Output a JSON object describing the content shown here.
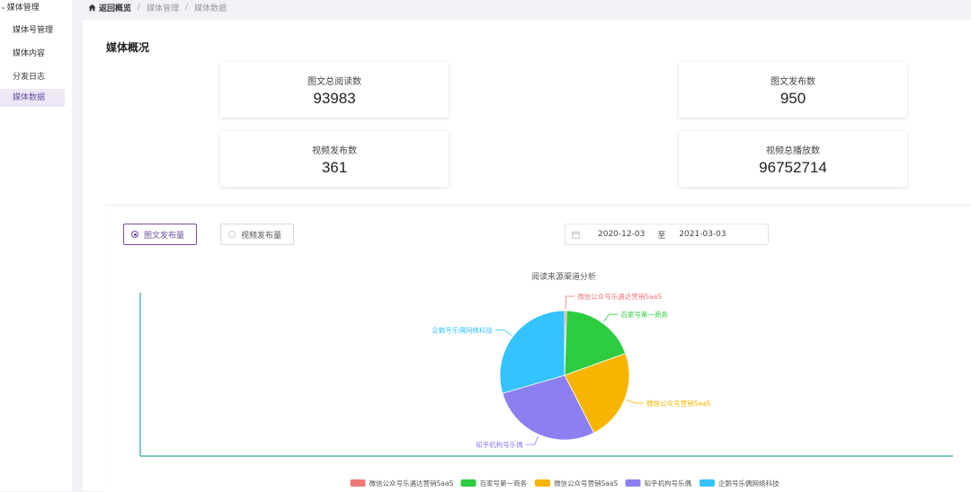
{
  "sidebar": {
    "group_label": "媒体管理",
    "items": [
      {
        "label": "媒体号管理"
      },
      {
        "label": "媒体内容"
      },
      {
        "label": "分发日志"
      },
      {
        "label": "媒体数据"
      }
    ]
  },
  "breadcrumb": {
    "back_label": "返回概览",
    "items": [
      "媒体管理",
      "媒体数据"
    ]
  },
  "overview": {
    "title": "媒体概况",
    "stats": [
      {
        "label": "图文总阅读数",
        "value": "93983"
      },
      {
        "label": "图文发布数",
        "value": "950"
      },
      {
        "label": "视频发布数",
        "value": "361"
      },
      {
        "label": "视频总播放数",
        "value": "96752714"
      }
    ]
  },
  "filters": {
    "radio_options": [
      "图文发布量",
      "视频发布量"
    ],
    "selected_index": 0,
    "date_start": "2020-12-03",
    "date_separator": "至",
    "date_end": "2021-03-03"
  },
  "colors": {
    "accent": "#7b4aa3",
    "axis": "#009688"
  },
  "chart_data": {
    "type": "pie",
    "title": "阅读来源渠道分析",
    "legend_position": "bottom",
    "series": [
      {
        "name": "微信公众号乐遇达营销SaaS",
        "value": 0.5,
        "color": "#f07878"
      },
      {
        "name": "百家号第一商务",
        "value": 19,
        "color": "#2ecc40"
      },
      {
        "name": "微信公众号营销SaaS",
        "value": 23,
        "color": "#f7b500"
      },
      {
        "name": "知乎机构号乐偶",
        "value": 28,
        "color": "#8c7ff0"
      },
      {
        "name": "企鹅号乐偶网络科技",
        "value": 29.5,
        "color": "#34c3ff"
      }
    ]
  }
}
